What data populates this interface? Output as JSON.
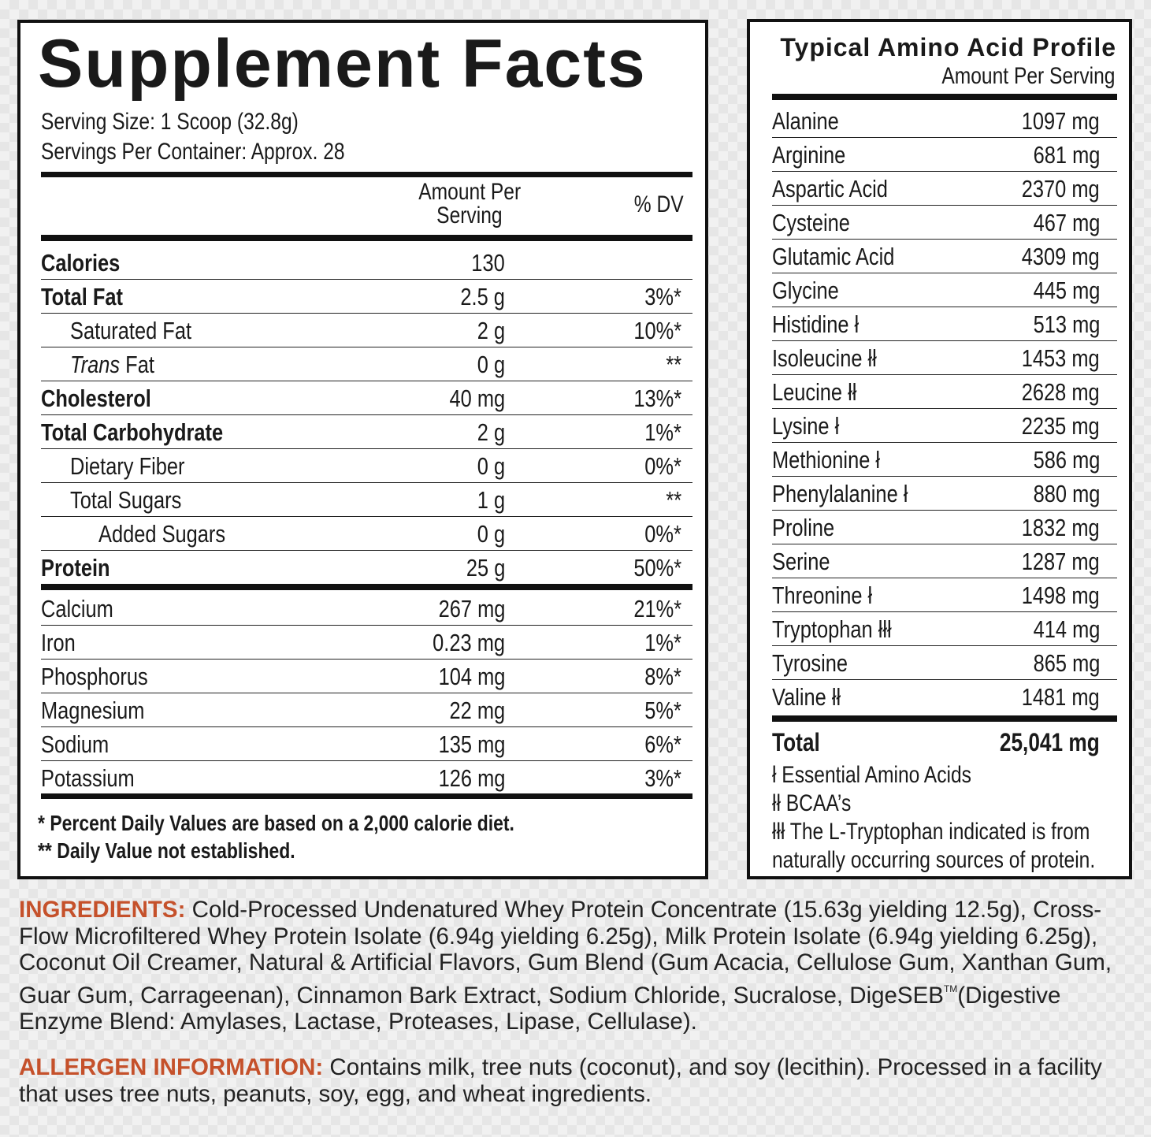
{
  "supplement_facts": {
    "title": "Supplement Facts",
    "serving_size": "Serving Size: 1 Scoop (32.8g)",
    "servings_per_container": "Servings Per Container: Approx. 28",
    "header_amount_line1": "Amount Per",
    "header_amount_line2": "Serving",
    "header_dv": "% DV",
    "rows": [
      {
        "name": "Calories",
        "amount": "130",
        "dv": ""
      },
      {
        "name": "Total Fat",
        "amount": "2.5 g",
        "dv": "3%*"
      },
      {
        "name": "Saturated Fat",
        "amount": "2 g",
        "dv": "10%*"
      },
      {
        "name_italic": "Trans",
        "name_rest": " Fat",
        "amount": "0 g",
        "dv": "**"
      },
      {
        "name": "Cholesterol",
        "amount": "40 mg",
        "dv": "13%*"
      },
      {
        "name": "Total Carbohydrate",
        "amount": "2 g",
        "dv": "1%*"
      },
      {
        "name": "Dietary Fiber",
        "amount": "0 g",
        "dv": "0%*"
      },
      {
        "name": "Total Sugars",
        "amount": "1 g",
        "dv": "**"
      },
      {
        "name": "Added Sugars",
        "amount": "0 g",
        "dv": "0%*"
      },
      {
        "name": "Protein",
        "amount": "25 g",
        "dv": "50%*"
      },
      {
        "name": "Calcium",
        "amount": "267 mg",
        "dv": "21%*"
      },
      {
        "name": "Iron",
        "amount": "0.23 mg",
        "dv": "1%*"
      },
      {
        "name": "Phosphorus",
        "amount": "104 mg",
        "dv": "8%*"
      },
      {
        "name": "Magnesium",
        "amount": "22 mg",
        "dv": "5%*"
      },
      {
        "name": "Sodium",
        "amount": "135 mg",
        "dv": "6%*"
      },
      {
        "name": "Potassium",
        "amount": "126 mg",
        "dv": "3%*"
      }
    ],
    "footnote_1": "* Percent Daily Values are based on a 2,000 calorie diet.",
    "footnote_2": "** Daily Value not established."
  },
  "amino_profile": {
    "title": "Typical Amino Acid Profile",
    "subtitle": "Amount Per Serving",
    "rows": [
      {
        "name": "Alanine",
        "amount": "1097 mg"
      },
      {
        "name": "Arginine",
        "amount": "681 mg"
      },
      {
        "name": "Aspartic Acid",
        "amount": "2370 mg"
      },
      {
        "name": "Cysteine",
        "amount": "467 mg"
      },
      {
        "name": "Glutamic Acid",
        "amount": "4309 mg"
      },
      {
        "name": "Glycine",
        "amount": "445 mg"
      },
      {
        "name": "Histidine ł",
        "amount": "513 mg"
      },
      {
        "name": "Isoleucine łł",
        "amount": "1453 mg"
      },
      {
        "name": "Leucine łł",
        "amount": "2628 mg"
      },
      {
        "name": "Lysine ł",
        "amount": "2235 mg"
      },
      {
        "name": "Methionine ł",
        "amount": "586 mg"
      },
      {
        "name": "Phenylalanine ł",
        "amount": "880 mg"
      },
      {
        "name": "Proline",
        "amount": "1832 mg"
      },
      {
        "name": "Serine",
        "amount": "1287 mg"
      },
      {
        "name": "Threonine ł",
        "amount": "1498 mg"
      },
      {
        "name": "Tryptophan łłł",
        "amount": "414 mg"
      },
      {
        "name": "Tyrosine",
        "amount": "865 mg"
      },
      {
        "name": "Valine łł",
        "amount": "1481 mg"
      }
    ],
    "total_label": "Total",
    "total_amount": "25,041 mg",
    "note_1": "ł Essential Amino Acids",
    "note_2": "łł BCAA’s",
    "note_3": "łłł The L-Tryptophan indicated is from",
    "note_4": "naturally occurring sources of protein."
  },
  "ingredients": {
    "label": "INGREDIENTS:",
    "text_before_tm": " Cold-Processed Undenatured Whey Protein Concentrate (15.63g yielding 12.5g), Cross-Flow Microfiltered Whey Protein Isolate (6.94g yielding 6.25g), Milk Protein Isolate (6.94g yielding 6.25g), Coconut Oil Creamer, Natural & Artificial Flavors, Gum Blend (Gum Acacia, Cellulose Gum, Xanthan Gum, Guar Gum, Carrageenan), Cinnamon Bark Extract, Sodium Chloride, Sucralose, DigeSEB",
    "tm": "TM",
    "text_after_tm": "(Digestive Enzyme Blend: Amylases, Lactase, Proteases, Lipase, Cellulase)."
  },
  "allergen": {
    "label": "ALLERGEN INFORMATION:",
    "text": " Contains milk, tree nuts (coconut), and soy (lecithin). Processed in a facility that uses tree nuts, peanuts, soy, egg, and wheat ingredients."
  }
}
